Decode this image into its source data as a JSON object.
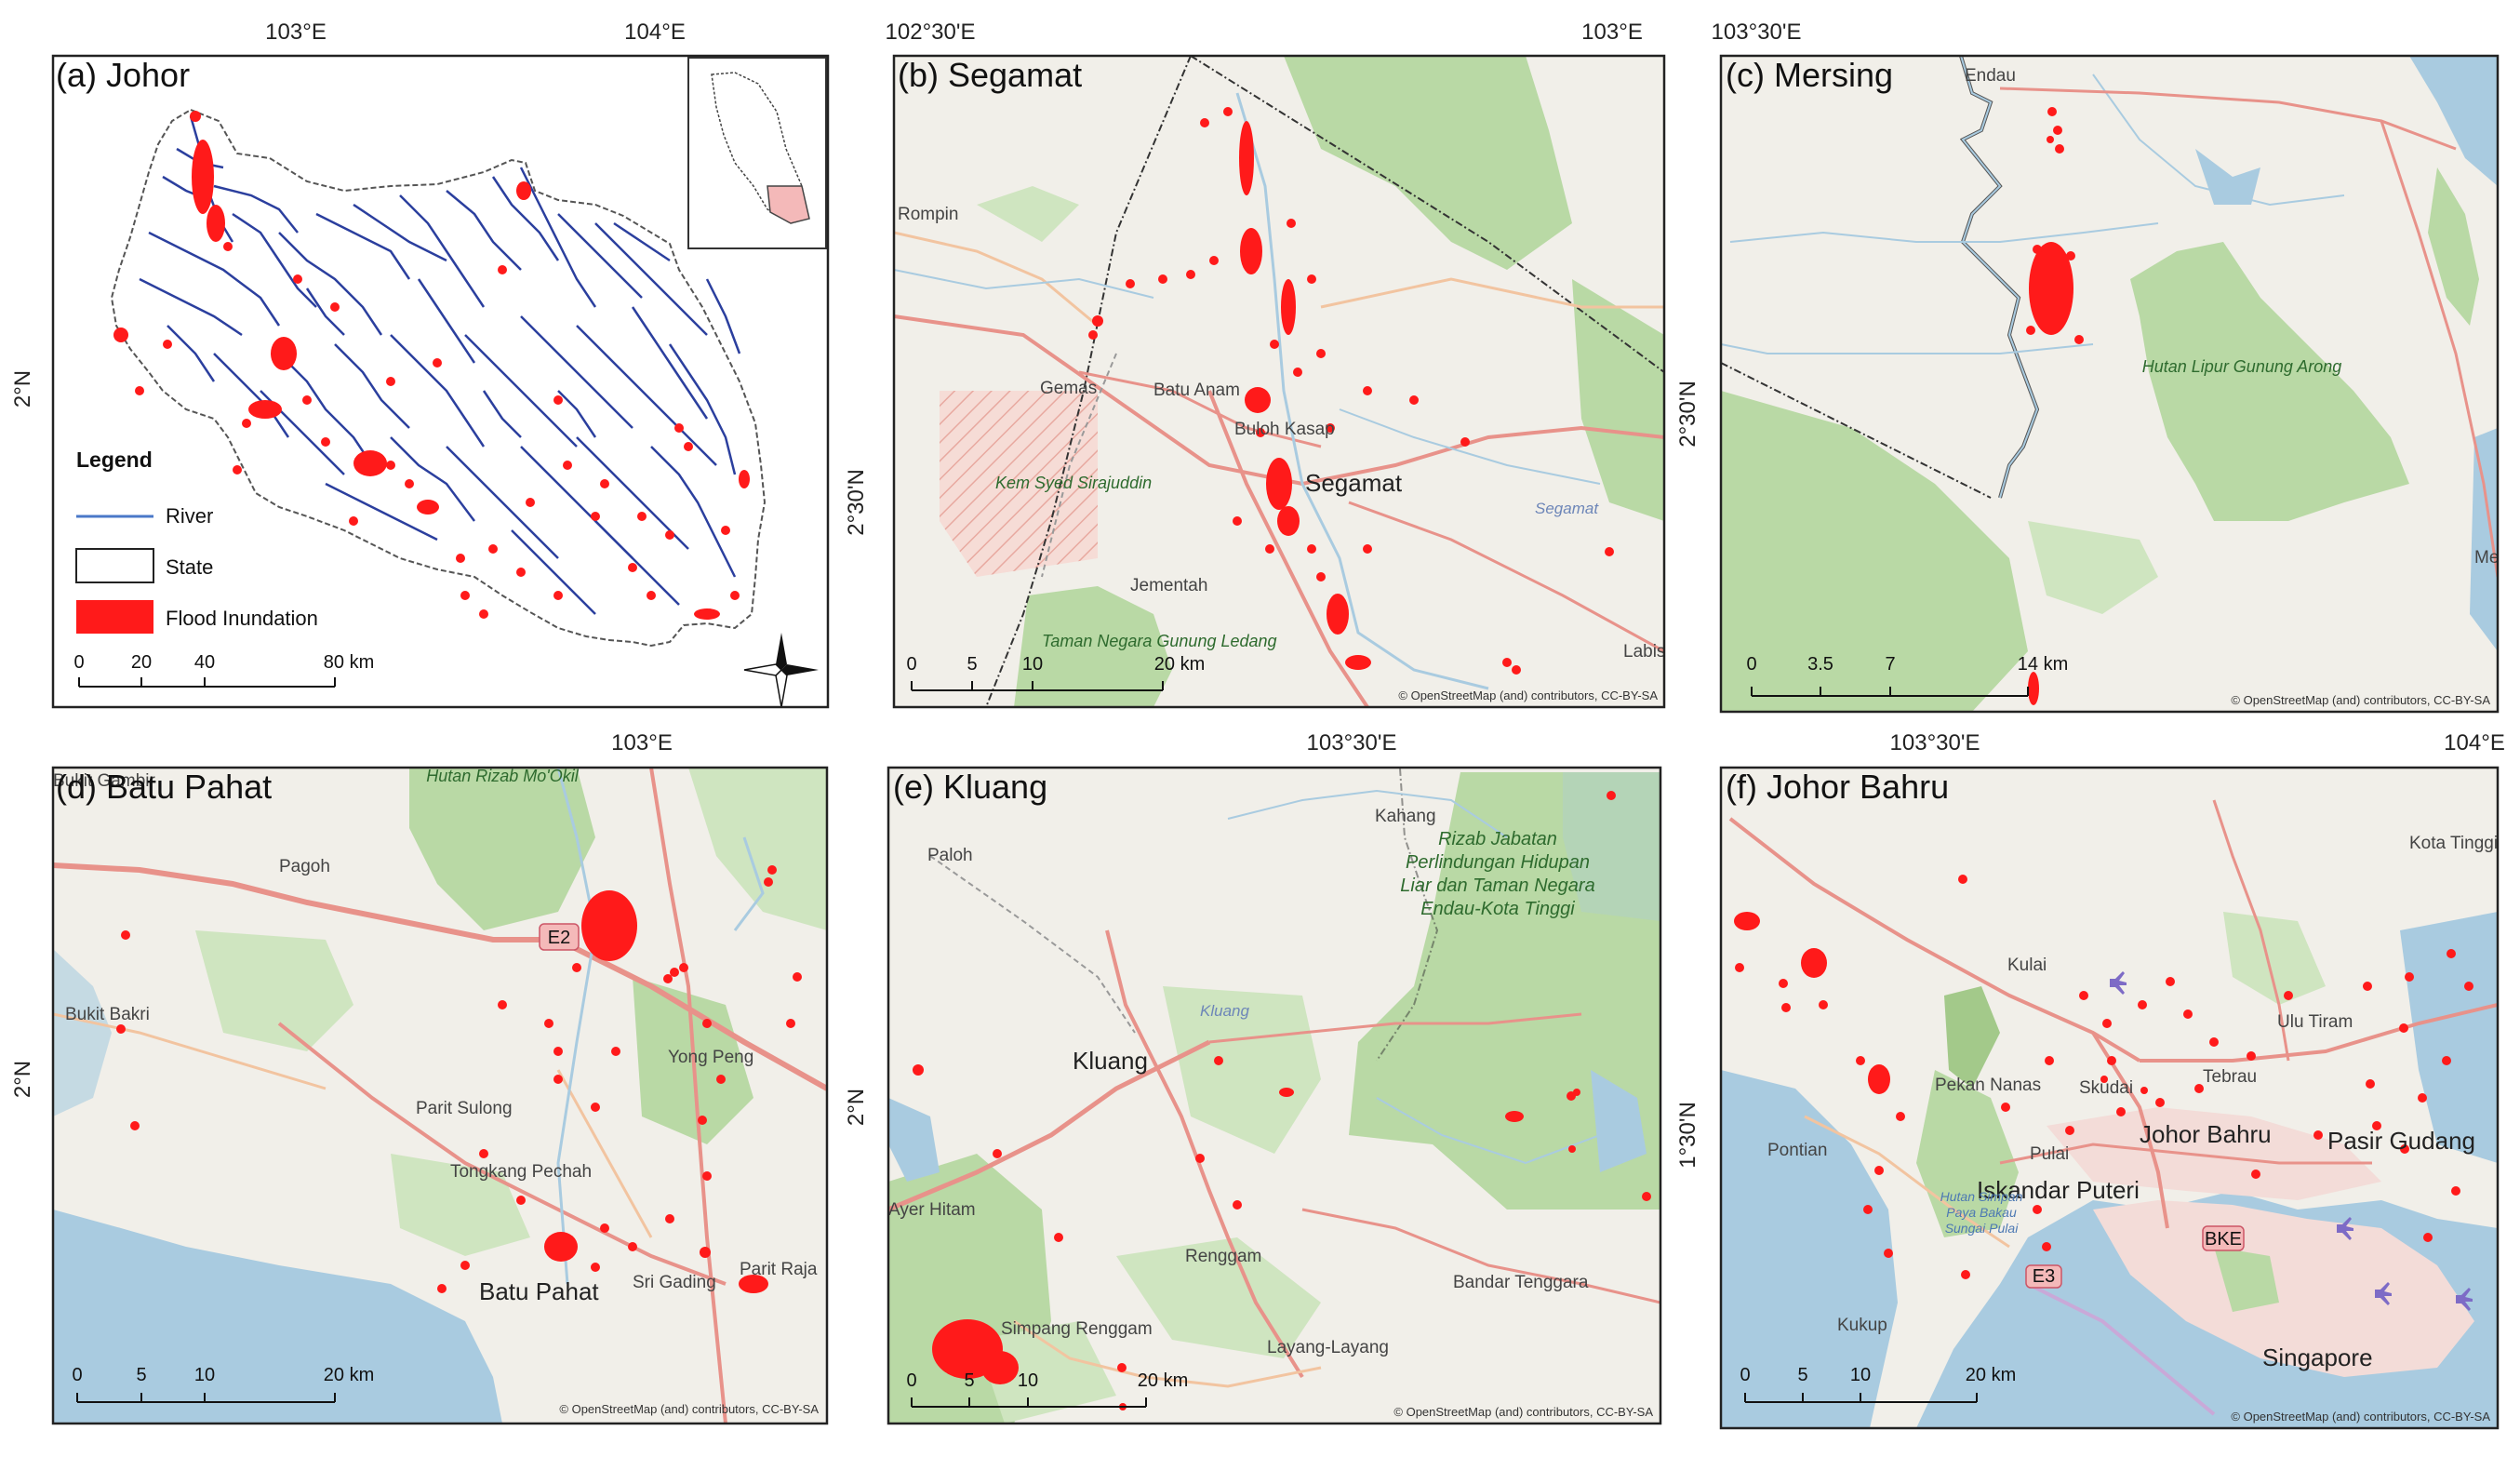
{
  "colors": {
    "flood": "#ff1a1a",
    "river_main": "#2b3f9e",
    "river_legend": "#4a78c8",
    "land": "#f1efe9",
    "forest": "#b9d9a5",
    "sea": "#a9cbe0",
    "road_major": "#e8928a",
    "road_minor": "#f2c4a0"
  },
  "top_coords": [
    "103°E",
    "104°E",
    "102°30'E",
    "103°E",
    "103°30'E"
  ],
  "mid_coords": [
    "103°E",
    "103°30'E",
    "103°30'E",
    "104°E"
  ],
  "left_coords": [
    "2°N",
    "2°30'N",
    "2°30'N",
    "2°N",
    "2°N",
    "1°30'N"
  ],
  "panels": {
    "a": {
      "title": "(a) Johor",
      "legend": {
        "title": "Legend",
        "river": "River",
        "state": "State",
        "flood": "Flood Inundation"
      },
      "scale": [
        "0",
        "20",
        "40",
        "80 km"
      ],
      "north_icon": "north-arrow-icon"
    },
    "b": {
      "title": "(b) Segamat",
      "scale": [
        "0",
        "5",
        "10",
        "20 km"
      ],
      "attribution": "© OpenStreetMap (and) contributors, CC-BY-SA",
      "places": [
        "Rompin",
        "Gemas",
        "Batu Anam",
        "Buloh Kasap",
        "Segamat",
        "Jementah",
        "Labis"
      ],
      "parks": [
        "Kem Syed Sirajuddin",
        "Taman Negara Gunung Ledang"
      ],
      "water": [
        "Segamat"
      ]
    },
    "c": {
      "title": "(c) Mersing",
      "scale": [
        "0",
        "3.5",
        "7",
        "14 km"
      ],
      "attribution": "© OpenStreetMap (and) contributors, CC-BY-SA",
      "places": [
        "Endau",
        "Mersing"
      ],
      "parks": [
        "Hutan Lipur Gunung Arong"
      ]
    },
    "d": {
      "title": "(d) Batu Pahat",
      "scale": [
        "0",
        "5",
        "10",
        "20 km"
      ],
      "attribution": "© OpenStreetMap (and) contributors, CC-BY-SA",
      "places": [
        "Bukit Gambir",
        "Pagoh",
        "Bukit Bakri",
        "Parit Sulong",
        "Yong Peng",
        "Tongkang Pechah",
        "Batu Pahat",
        "Sri Gading",
        "Parit Raja"
      ],
      "parks": [
        "Hutan Rizab Mo'Okil"
      ],
      "road_label": "E2"
    },
    "e": {
      "title": "(e) Kluang",
      "scale": [
        "0",
        "5",
        "10",
        "20 km"
      ],
      "attribution": "© OpenStreetMap (and) contributors, CC-BY-SA",
      "places": [
        "Paloh",
        "Kahang",
        "Kluang",
        "Ayer Hitam",
        "Renggam",
        "Simpang Renggam",
        "Layang-Layang",
        "Bandar Tenggara"
      ],
      "parks": [
        "Rizab Jabatan Perlindungan Hidupan Liar dan Taman Negara Endau-Kota Tinggi"
      ],
      "water": [
        "Kluang"
      ]
    },
    "f": {
      "title": "(f) Johor Bahru",
      "scale": [
        "0",
        "5",
        "10",
        "20 km"
      ],
      "attribution": "© OpenStreetMap (and) contributors, CC-BY-SA",
      "places": [
        "Kota Tinggi",
        "Kulai",
        "Ulu Tiram",
        "Pontian",
        "Pekan Nanas",
        "Skudai",
        "Tebrau",
        "Johor Bahru",
        "Pasir Gudang",
        "Pulai",
        "Iskandar Puteri",
        "Kukup",
        "Singapore"
      ],
      "parks": [
        "Hutan Simpan Paya Bakau Sungai Pulai"
      ],
      "road_labels": [
        "BKE",
        "E3"
      ]
    }
  }
}
